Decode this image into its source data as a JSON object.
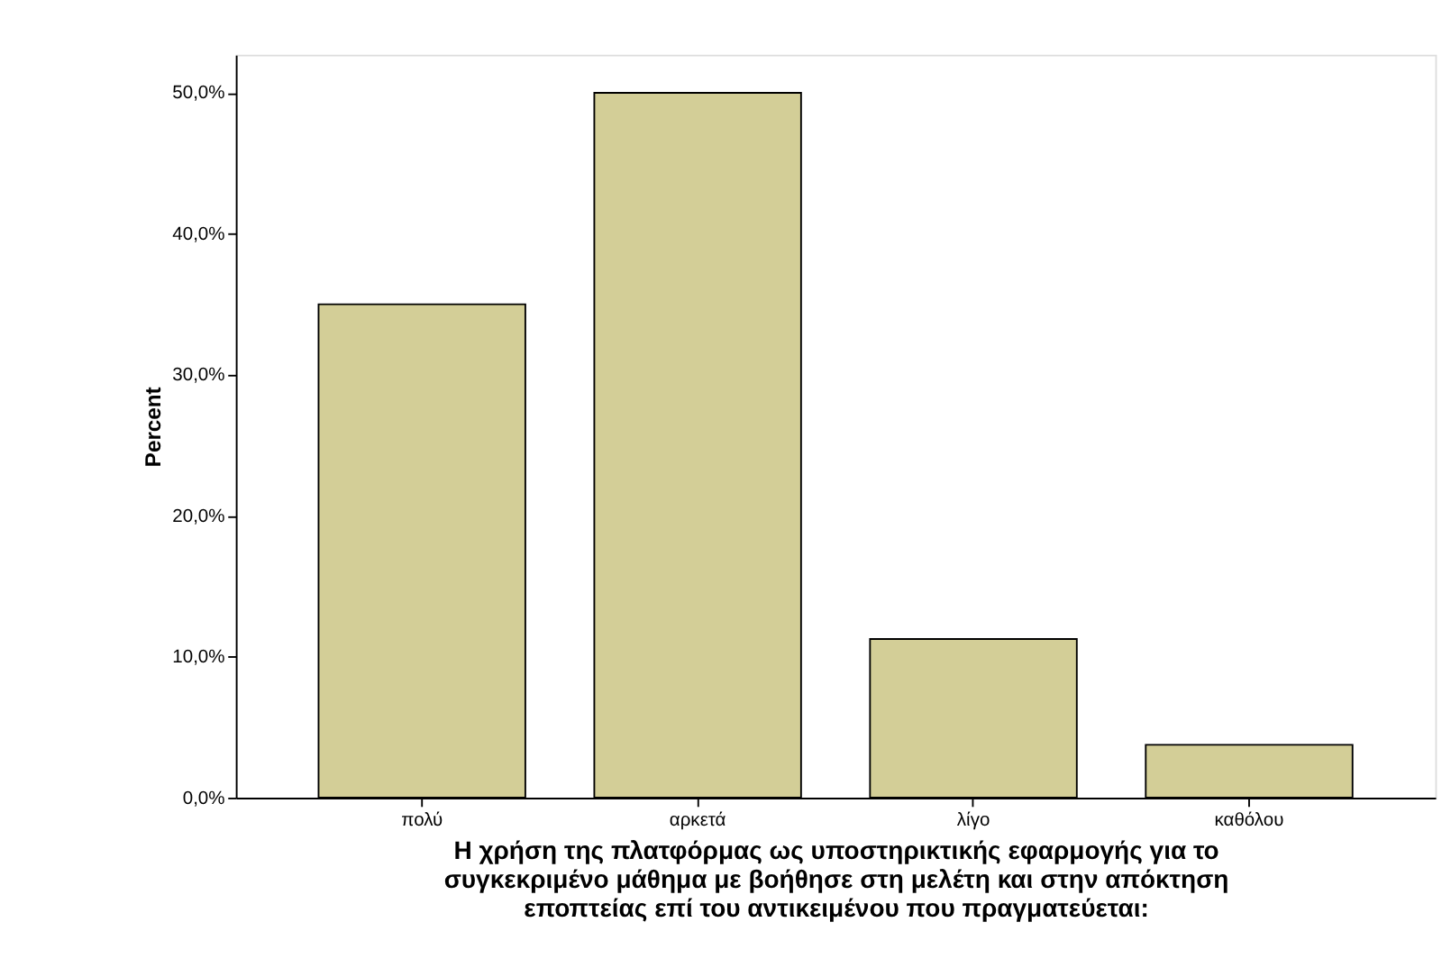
{
  "chart_data": {
    "type": "bar",
    "ylabel": "Percent",
    "xlabel": [
      "Η χρήση της πλατφόρμας ως υποστηρικτικής εφαρμογής για το",
      "συγκεκριμένο μάθημα με βοήθησε στη μελέτη και στην απόκτηση",
      "εποπτείας επί του αντικειμένου που πραγματεύεται:"
    ],
    "categories": [
      "πολύ",
      "αρκετά",
      "λίγο",
      "καθόλου"
    ],
    "values": [
      35,
      50,
      11.25,
      3.75
    ],
    "color": "#d3ce97",
    "ylim": [
      0,
      52.7
    ],
    "yticks": [
      {
        "value": 0,
        "label": "0,0%"
      },
      {
        "value": 10,
        "label": "10,0%"
      },
      {
        "value": 20,
        "label": "20,0%"
      },
      {
        "value": 30,
        "label": "30,0%"
      },
      {
        "value": 40,
        "label": "40,0%"
      },
      {
        "value": 50,
        "label": "50,0%"
      }
    ],
    "grid": false
  }
}
